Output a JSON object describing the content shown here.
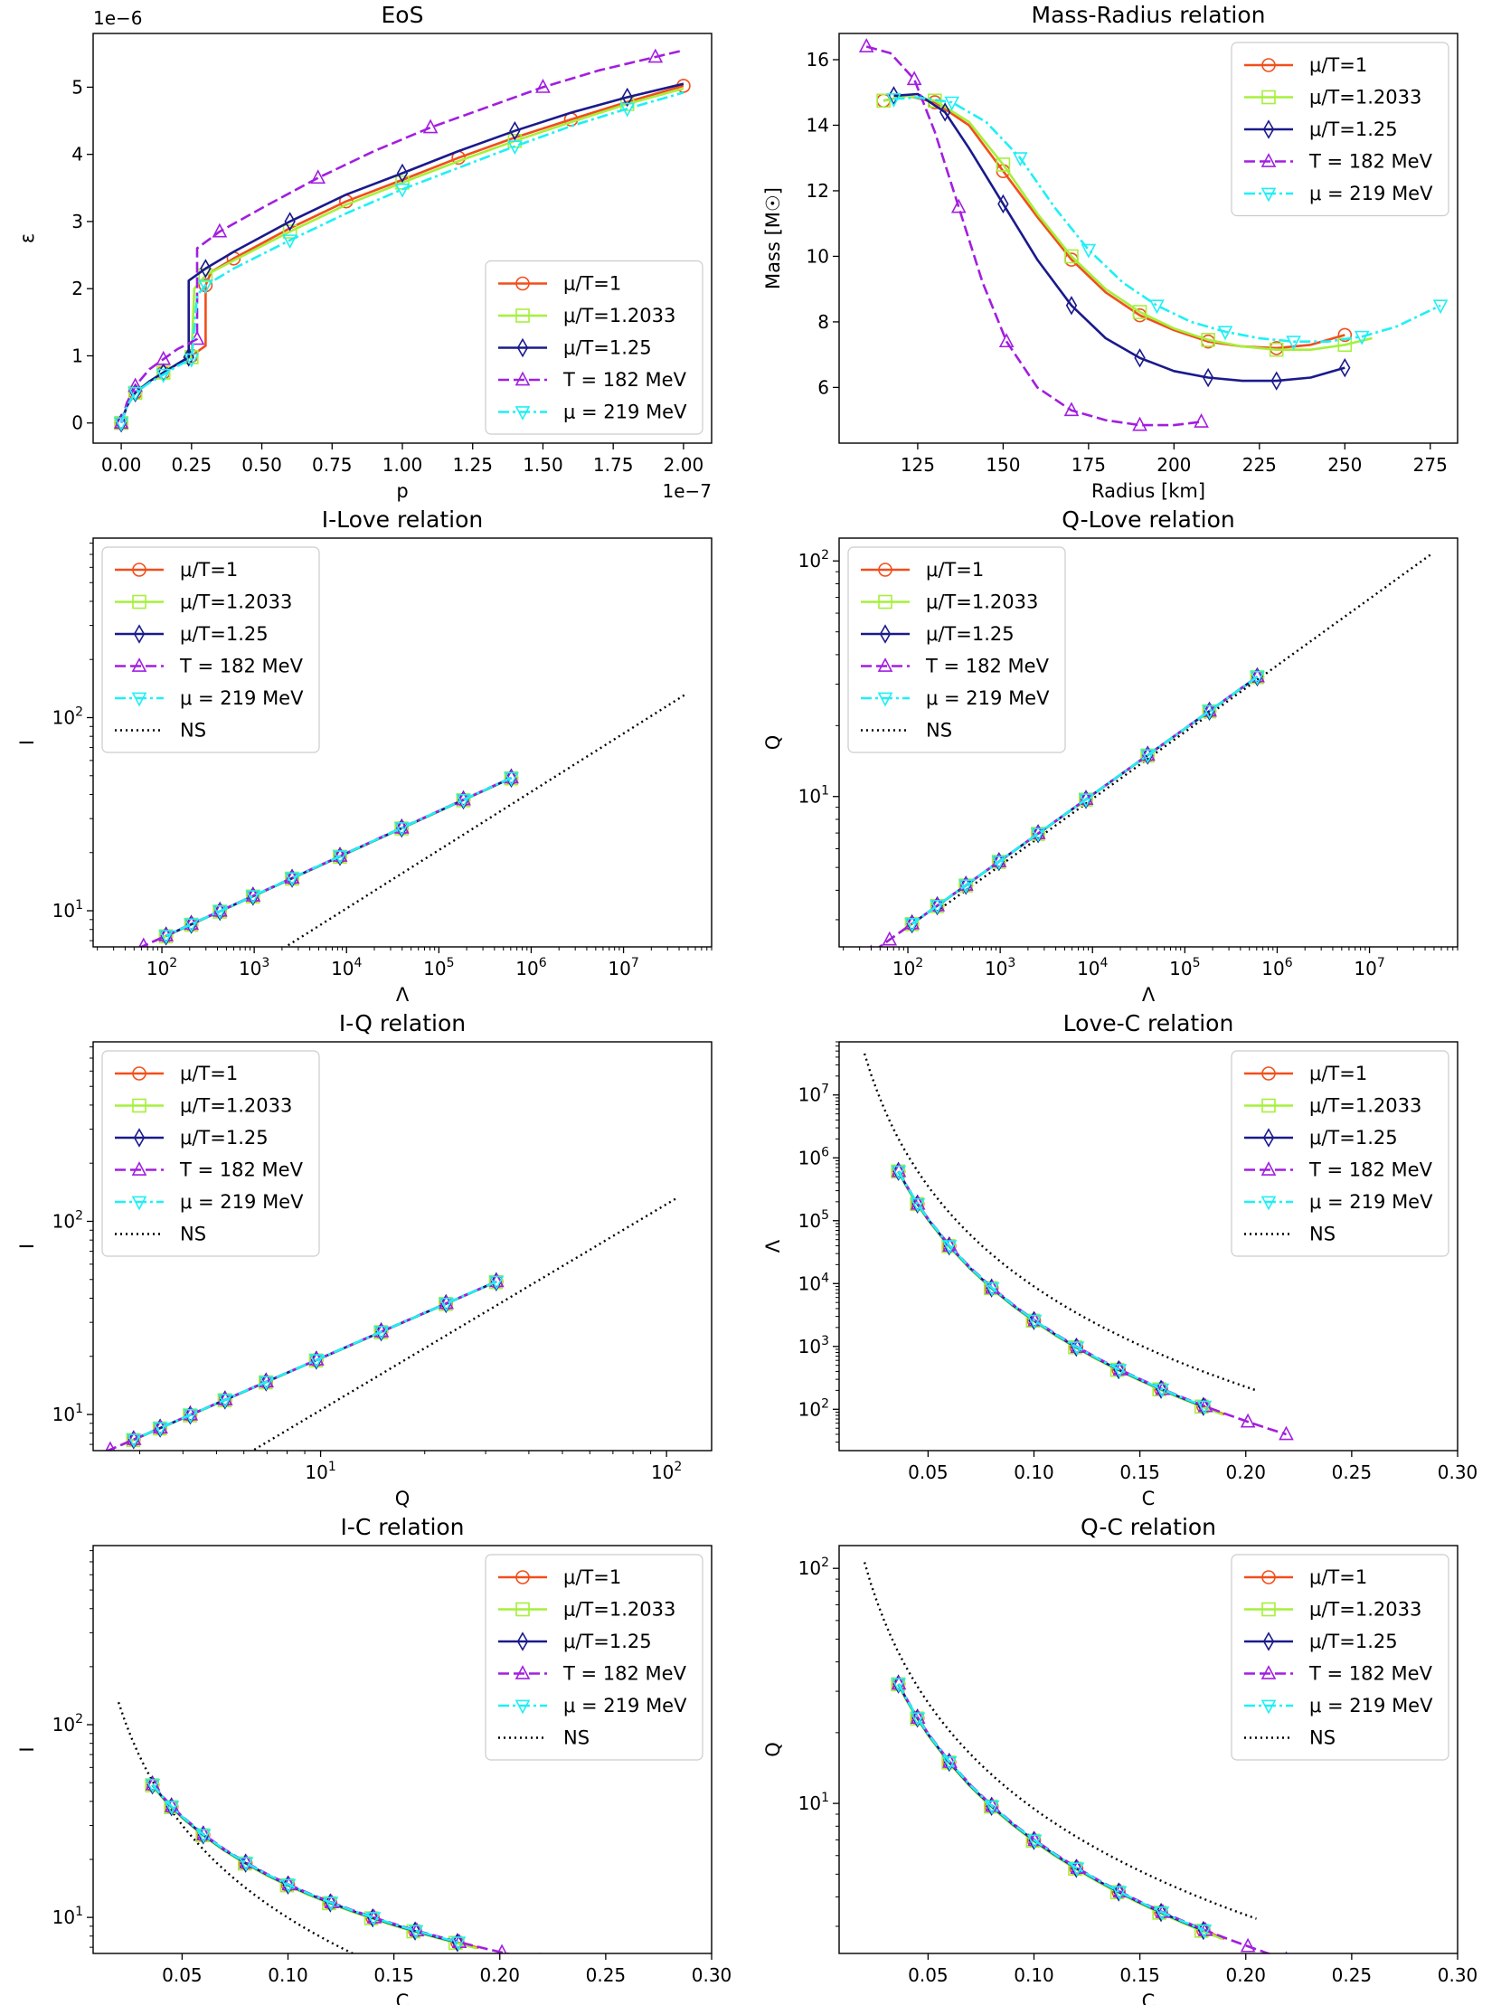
{
  "colors": {
    "mu1": "#f24e1b",
    "mu12033": "#a5f03b",
    "mu125": "#1a1a8c",
    "t182": "#a21ee0",
    "mu219": "#1ef0f5",
    "ns": "#000000"
  },
  "chart_data": [
    {
      "type": "line",
      "title": "EoS",
      "xlabel": "p",
      "ylabel": "ε",
      "xscale": "linear",
      "yscale": "linear",
      "xlim": [
        -0.1,
        2.1
      ],
      "ylim": [
        -0.3,
        5.8
      ],
      "xticks": [
        0,
        0.25,
        0.5,
        0.75,
        1,
        1.25,
        1.5,
        1.75,
        2
      ],
      "xtick_labels": [
        "0.00",
        "0.25",
        "0.50",
        "0.75",
        "1.00",
        "1.25",
        "1.50",
        "1.75",
        "2.00"
      ],
      "yticks": [
        0,
        1,
        2,
        3,
        4,
        5
      ],
      "ytick_labels": [
        "0",
        "1",
        "2",
        "3",
        "4",
        "5"
      ],
      "x_offset": "1e−7",
      "y_offset": "1e−6",
      "legend": "lower-right",
      "series": [
        {
          "name": "μ/T=1",
          "key": "mu1",
          "marker": "o",
          "dash": "",
          "x": [
            0,
            0.02,
            0.05,
            0.1,
            0.15,
            0.2,
            0.25,
            0.3,
            0.3,
            0.32,
            0.4,
            0.6,
            0.8,
            1,
            1.2,
            1.4,
            1.6,
            1.8,
            2
          ],
          "y": [
            0,
            0.25,
            0.45,
            0.62,
            0.75,
            0.88,
            1,
            1.15,
            2.05,
            2.25,
            2.45,
            2.9,
            3.3,
            3.62,
            3.95,
            4.25,
            4.52,
            4.78,
            5.02
          ]
        },
        {
          "name": "μ/T=1.2033",
          "key": "mu12033",
          "marker": "s",
          "dash": "",
          "x": [
            0,
            0.02,
            0.05,
            0.1,
            0.15,
            0.2,
            0.25,
            0.26,
            0.3,
            0.4,
            0.6,
            0.8,
            1,
            1.2,
            1.4,
            1.6,
            1.8,
            2
          ],
          "y": [
            0,
            0.25,
            0.45,
            0.62,
            0.75,
            0.88,
            0.98,
            2.0,
            2.2,
            2.42,
            2.85,
            3.25,
            3.58,
            3.9,
            4.2,
            4.48,
            4.75,
            4.98
          ]
        },
        {
          "name": "μ/T=1.25",
          "key": "mu125",
          "marker": "d",
          "dash": "",
          "x": [
            0,
            0.02,
            0.05,
            0.1,
            0.15,
            0.2,
            0.24,
            0.24,
            0.3,
            0.4,
            0.6,
            0.8,
            1,
            1.2,
            1.4,
            1.6,
            1.8,
            2
          ],
          "y": [
            0,
            0.25,
            0.45,
            0.62,
            0.75,
            0.88,
            0.98,
            2.12,
            2.3,
            2.55,
            3.0,
            3.4,
            3.72,
            4.05,
            4.35,
            4.62,
            4.85,
            5.05
          ]
        },
        {
          "name": "T = 182 MeV",
          "key": "t182",
          "marker": "^",
          "dash": "12,5",
          "x": [
            0,
            0.02,
            0.05,
            0.1,
            0.15,
            0.2,
            0.27,
            0.27,
            0.35,
            0.5,
            0.7,
            0.9,
            1.1,
            1.3,
            1.5,
            1.7,
            1.9,
            2
          ],
          "y": [
            0,
            0.3,
            0.55,
            0.8,
            0.95,
            1.1,
            1.25,
            2.6,
            2.85,
            3.2,
            3.65,
            4.05,
            4.4,
            4.7,
            5.0,
            5.25,
            5.45,
            5.55
          ]
        },
        {
          "name": "μ = 219 MeV",
          "key": "mu219",
          "marker": "v",
          "dash": "12,4,3,4",
          "x": [
            0,
            0.02,
            0.05,
            0.1,
            0.15,
            0.2,
            0.25,
            0.27,
            0.3,
            0.4,
            0.6,
            0.8,
            1,
            1.2,
            1.4,
            1.6,
            1.8,
            2
          ],
          "y": [
            0,
            0.25,
            0.45,
            0.6,
            0.72,
            0.85,
            0.95,
            1.9,
            2.05,
            2.3,
            2.72,
            3.12,
            3.48,
            3.8,
            4.12,
            4.42,
            4.68,
            4.92
          ]
        }
      ]
    },
    {
      "type": "line",
      "title": "Mass-Radius relation",
      "xlabel": "Radius [km]",
      "ylabel": "Mass [M☉]",
      "xscale": "linear",
      "yscale": "linear",
      "xlim": [
        102,
        283
      ],
      "ylim": [
        4.3,
        16.8
      ],
      "xticks": [
        125,
        150,
        175,
        200,
        225,
        250,
        275
      ],
      "xtick_labels": [
        "125",
        "150",
        "175",
        "200",
        "225",
        "250",
        "275"
      ],
      "yticks": [
        6,
        8,
        10,
        12,
        14,
        16
      ],
      "ytick_labels": [
        "6",
        "8",
        "10",
        "12",
        "14",
        "16"
      ],
      "legend": "upper-right",
      "series": [
        {
          "name": "μ/T=1",
          "key": "mu1",
          "marker": "o",
          "dash": "",
          "x": [
            115,
            122,
            130,
            140,
            150,
            160,
            170,
            180,
            190,
            200,
            210,
            220,
            230,
            240,
            250
          ],
          "y": [
            14.75,
            14.9,
            14.7,
            14.0,
            12.6,
            11.2,
            9.9,
            8.9,
            8.2,
            7.75,
            7.4,
            7.25,
            7.2,
            7.3,
            7.6
          ]
        },
        {
          "name": "μ/T=1.2033",
          "key": "mu12033",
          "marker": "s",
          "dash": "",
          "x": [
            115,
            122,
            130,
            140,
            150,
            160,
            170,
            180,
            190,
            200,
            210,
            220,
            230,
            240,
            250,
            258
          ],
          "y": [
            14.75,
            14.9,
            14.75,
            14.1,
            12.8,
            11.3,
            10.0,
            9.0,
            8.3,
            7.8,
            7.45,
            7.25,
            7.15,
            7.15,
            7.3,
            7.5
          ]
        },
        {
          "name": "μ/T=1.25",
          "key": "mu125",
          "marker": "d",
          "dash": "",
          "x": [
            118,
            125,
            133,
            140,
            150,
            160,
            170,
            180,
            190,
            200,
            210,
            220,
            230,
            240,
            250
          ],
          "y": [
            14.9,
            14.95,
            14.4,
            13.3,
            11.6,
            9.9,
            8.5,
            7.5,
            6.9,
            6.5,
            6.3,
            6.2,
            6.2,
            6.3,
            6.6
          ]
        },
        {
          "name": "T = 182 MeV",
          "key": "t182",
          "marker": "^",
          "dash": "12,5",
          "x": [
            110,
            117,
            124,
            130,
            137,
            144,
            151,
            160,
            170,
            180,
            190,
            200,
            208
          ],
          "y": [
            16.4,
            16.2,
            15.4,
            13.8,
            11.5,
            9.2,
            7.4,
            6.0,
            5.3,
            5.0,
            4.85,
            4.85,
            4.95
          ]
        },
        {
          "name": "μ = 219 MeV",
          "key": "mu219",
          "marker": "v",
          "dash": "12,4,3,4",
          "x": [
            118,
            125,
            135,
            145,
            155,
            165,
            175,
            185,
            195,
            205,
            215,
            225,
            235,
            245,
            255,
            265,
            278
          ],
          "y": [
            14.8,
            14.85,
            14.7,
            14.1,
            13.0,
            11.5,
            10.2,
            9.2,
            8.5,
            8.0,
            7.7,
            7.5,
            7.4,
            7.4,
            7.55,
            7.85,
            8.5
          ]
        }
      ]
    },
    {
      "type": "line",
      "title": "I-Love relation",
      "xlabel": "Λ",
      "ylabel": "I",
      "xscale": "log",
      "yscale": "log",
      "xlim": [
        18,
        90000000
      ],
      "ylim": [
        6.5,
        850
      ],
      "xticks": [
        100,
        1000,
        10000,
        100000,
        1000000,
        10000000
      ],
      "xtick_exp": [
        "2",
        "3",
        "4",
        "5",
        "6",
        "7"
      ],
      "yticks": [
        10,
        100
      ],
      "ytick_exp": [
        "1",
        "2"
      ],
      "legend": "upper-left",
      "ns": true,
      "series": []
    },
    {
      "type": "line",
      "title": "Q-Love relation",
      "xlabel": "Λ",
      "ylabel": "Q",
      "xscale": "log",
      "yscale": "log",
      "xlim": [
        18,
        90000000
      ],
      "ylim": [
        2.3,
        125
      ],
      "xticks": [
        100,
        1000,
        10000,
        100000,
        1000000,
        10000000
      ],
      "xtick_exp": [
        "2",
        "3",
        "4",
        "5",
        "6",
        "7"
      ],
      "yticks": [
        10,
        100
      ],
      "ytick_exp": [
        "1",
        "2"
      ],
      "legend": "upper-left",
      "ns": true,
      "series": []
    },
    {
      "type": "line",
      "title": "I-Q relation",
      "xlabel": "Q",
      "ylabel": "I",
      "xscale": "log",
      "yscale": "log",
      "xlim": [
        2.2,
        135
      ],
      "ylim": [
        6.5,
        850
      ],
      "xticks": [
        10,
        100
      ],
      "xtick_exp": [
        "1",
        "2"
      ],
      "yticks": [
        10,
        100
      ],
      "ytick_exp": [
        "1",
        "2"
      ],
      "legend": "upper-left",
      "ns": true,
      "series": []
    },
    {
      "type": "line",
      "title": "Love-C relation",
      "xlabel": "C",
      "ylabel": "Λ",
      "xscale": "linear",
      "yscale": "log",
      "xlim": [
        0.008,
        0.3
      ],
      "ylim": [
        22,
        70000000
      ],
      "xticks": [
        0.05,
        0.1,
        0.15,
        0.2,
        0.25,
        0.3
      ],
      "xtick_labels": [
        "0.05",
        "0.10",
        "0.15",
        "0.20",
        "0.25",
        "0.30"
      ],
      "yticks": [
        100,
        1000,
        10000,
        100000,
        1000000,
        10000000
      ],
      "ytick_exp": [
        "2",
        "3",
        "4",
        "5",
        "6",
        "7"
      ],
      "legend": "upper-right",
      "ns": true,
      "series": []
    },
    {
      "type": "line",
      "title": "I-C relation",
      "xlabel": "C",
      "ylabel": "I",
      "xscale": "linear",
      "yscale": "log",
      "xlim": [
        0.008,
        0.3
      ],
      "ylim": [
        6.5,
        850
      ],
      "xticks": [
        0.05,
        0.1,
        0.15,
        0.2,
        0.25,
        0.3
      ],
      "xtick_labels": [
        "0.05",
        "0.10",
        "0.15",
        "0.20",
        "0.25",
        "0.30"
      ],
      "yticks": [
        10,
        100
      ],
      "ytick_exp": [
        "1",
        "2"
      ],
      "legend": "upper-right",
      "ns": true,
      "series": []
    },
    {
      "type": "line",
      "title": "Q-C relation",
      "xlabel": "C",
      "ylabel": "Q",
      "xscale": "linear",
      "yscale": "log",
      "xlim": [
        0.008,
        0.3
      ],
      "ylim": [
        2.3,
        125
      ],
      "xticks": [
        0.05,
        0.1,
        0.15,
        0.2,
        0.25,
        0.3
      ],
      "xtick_labels": [
        "0.05",
        "0.10",
        "0.15",
        "0.20",
        "0.25",
        "0.30"
      ],
      "yticks": [
        10,
        100
      ],
      "ytick_exp": [
        "1",
        "2"
      ],
      "legend": "upper-right",
      "ns": true,
      "series": []
    }
  ],
  "universal": {
    "C": [
      0.036,
      0.04,
      0.045,
      0.05,
      0.06,
      0.07,
      0.08,
      0.09,
      0.1,
      0.11,
      0.12,
      0.13,
      0.14,
      0.15,
      0.16,
      0.17,
      0.18,
      0.19,
      0.2,
      0.21,
      0.218
    ],
    "ns": {
      "C": [
        0.02,
        0.03,
        0.04,
        0.05,
        0.06,
        0.08,
        0.1,
        0.12,
        0.14,
        0.16,
        0.18,
        0.2
      ]
    },
    "offsets": {
      "mu1": {
        "cmax": 0.19,
        "d": 0.0
      },
      "mu12033": {
        "cmax": 0.19,
        "d": -0.01
      },
      "mu125": {
        "cmax": 0.188,
        "d": 0.0
      },
      "t182": {
        "cmax": 0.218,
        "d": 0.01
      },
      "mu219": {
        "cmax": 0.183,
        "d": 0.005
      }
    }
  },
  "legend_names": [
    "μ/T=1",
    "μ/T=1.2033",
    "μ/T=1.25",
    "T = 182 MeV",
    "μ = 219 MeV",
    "NS"
  ]
}
